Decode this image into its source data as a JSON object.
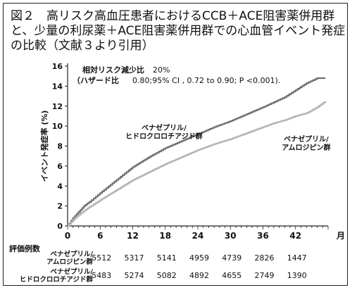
{
  "figure": {
    "title": "図２　高リスク高血圧患者におけるCCB＋ACE阻害薬併用群と、少量の利尿薬＋ACE阻害薬併用群での心血管イベント発症の比較（文献３より引用）"
  },
  "chart_data": {
    "type": "line",
    "annotation": {
      "line1_label": "相対リスク減少比",
      "line1_value": "20%",
      "line2_label": "（ハザード比",
      "line2_value": "0.80;95% CI , 0.72 to 0.90; P <0.001)."
    },
    "ylabel": "イベント発症率 (%)",
    "xunit": "月",
    "x_ticks": [
      0,
      6,
      12,
      18,
      24,
      30,
      36,
      42
    ],
    "y_ticks": [
      0,
      2,
      4,
      6,
      8,
      10,
      12,
      14,
      16
    ],
    "xlim": [
      0,
      48
    ],
    "ylim": [
      0,
      16
    ],
    "series": [
      {
        "name": "ベナゼプリル/ヒドロクロロチアジド群",
        "label_lines": [
          "ベナゼプリル/",
          "ヒドロクロロチアジド群"
        ],
        "color": "#707070",
        "x": [
          0,
          1,
          2,
          3,
          4,
          6,
          9,
          12,
          15,
          18,
          21,
          24,
          27,
          30,
          33,
          36,
          38,
          40,
          42,
          44,
          46,
          47.5
        ],
        "y": [
          0,
          0.8,
          1.4,
          2.0,
          2.4,
          3.3,
          4.6,
          5.9,
          6.9,
          7.8,
          8.5,
          9.2,
          9.9,
          10.5,
          11.2,
          11.9,
          12.4,
          12.9,
          13.6,
          14.3,
          14.8,
          14.8
        ]
      },
      {
        "name": "ベナゼプリル/アムロジピン群",
        "label_lines": [
          "ベナゼプリル/",
          "アムロジピン群"
        ],
        "color": "#b3b3b3",
        "x": [
          0,
          1,
          2,
          3,
          4,
          6,
          9,
          12,
          15,
          18,
          21,
          24,
          27,
          30,
          33,
          36,
          38,
          40,
          42,
          44,
          46,
          47.5
        ],
        "y": [
          0,
          0.6,
          1.1,
          1.5,
          1.9,
          2.6,
          3.6,
          4.6,
          5.4,
          6.2,
          6.9,
          7.6,
          8.2,
          8.7,
          9.3,
          9.9,
          10.3,
          10.6,
          11.0,
          11.3,
          11.9,
          12.5
        ]
      }
    ],
    "risk_table": {
      "header": "評価例数",
      "rows": [
        {
          "label_lines": [
            "ベナゼプリル/",
            "アムロジピン群"
          ],
          "values": [
            "5512",
            "5317",
            "5141",
            "4959",
            "4739",
            "2826",
            "1447"
          ]
        },
        {
          "label_lines": [
            "ベナゼプリル/",
            "ヒドロクロロチアジド群"
          ],
          "values": [
            "5483",
            "5274",
            "5082",
            "4892",
            "4655",
            "2749",
            "1390"
          ]
        }
      ]
    }
  }
}
